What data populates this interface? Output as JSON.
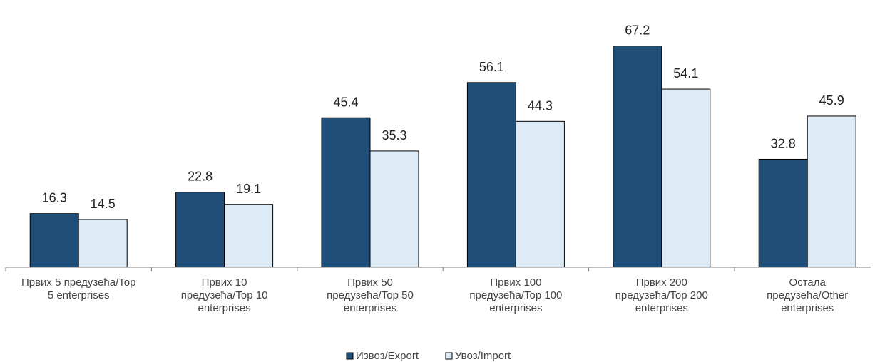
{
  "chart_data": {
    "type": "bar",
    "categories": [
      [
        "Првих 5 предузећа/Top",
        "5 enterprises"
      ],
      [
        "Првих 10",
        "предузећа/Top 10",
        "enterprises"
      ],
      [
        "Првих 50",
        "предузећа/Top 50",
        "enterprises"
      ],
      [
        "Првих 100",
        "предузећа/Top 100",
        "enterprises"
      ],
      [
        "Првих 200",
        "предузећа/Top 200",
        "enterprises"
      ],
      [
        "Остала",
        "предузећа/Other",
        "enterprises"
      ]
    ],
    "series": [
      {
        "name": "Извоз/Export",
        "values": [
          16.3,
          22.8,
          45.4,
          56.1,
          67.2,
          32.8
        ]
      },
      {
        "name": "Увоз/Import",
        "values": [
          14.5,
          19.1,
          35.3,
          44.3,
          54.1,
          45.9
        ]
      }
    ],
    "ylim": [
      0,
      75
    ],
    "grid": false,
    "legend": "bottom-center"
  },
  "colors": {
    "export_fill": "#1F4E79",
    "import_fill": "#DDEBF7",
    "bar_stroke": "#000000",
    "axis": "#7F7F7F"
  }
}
